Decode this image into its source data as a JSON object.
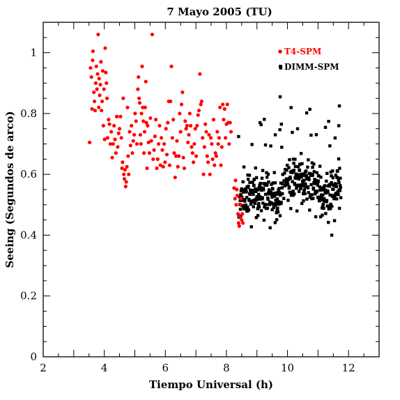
{
  "chart_data": {
    "type": "scatter",
    "title": "7 Mayo 2005 (TU)",
    "xlabel": "Tiempo Universal (h)",
    "ylabel": "Seeing (Segundos de arco)",
    "xlim": [
      2,
      13
    ],
    "ylim": [
      0,
      1.1
    ],
    "x_ticks": [
      2,
      4,
      6,
      8,
      10,
      12
    ],
    "y_ticks": [
      0,
      0.2,
      0.4,
      0.6,
      0.8,
      1
    ],
    "x_minor_step": 0.5,
    "y_minor_step": 0.05,
    "grid": false,
    "legend_position": "top-right",
    "series": [
      {
        "name": "T4-SPM",
        "color": "#ff0000",
        "marker": "circle",
        "points": [
          [
            3.52,
            0.705
          ],
          [
            3.55,
            0.95
          ],
          [
            3.58,
            0.92
          ],
          [
            3.6,
            0.815
          ],
          [
            3.62,
            0.975
          ],
          [
            3.63,
            1.005
          ],
          [
            3.66,
            0.87
          ],
          [
            3.68,
            0.84
          ],
          [
            3.7,
            0.81
          ],
          [
            3.72,
            0.9
          ],
          [
            3.74,
            0.955
          ],
          [
            3.76,
            0.88
          ],
          [
            3.78,
            0.93
          ],
          [
            3.8,
            1.06
          ],
          [
            3.82,
            0.82
          ],
          [
            3.83,
            0.915
          ],
          [
            3.85,
            0.86
          ],
          [
            3.87,
            0.895
          ],
          [
            3.89,
            0.97
          ],
          [
            3.91,
            0.81
          ],
          [
            3.93,
            0.84
          ],
          [
            3.95,
            0.94
          ],
          [
            3.97,
            0.76
          ],
          [
            3.99,
            0.88
          ],
          [
            4.01,
            0.715
          ],
          [
            4.03,
            1.015
          ],
          [
            4.05,
            0.935
          ],
          [
            4.07,
            0.9
          ],
          [
            4.09,
            0.85
          ],
          [
            4.11,
            0.72
          ],
          [
            4.14,
            0.78
          ],
          [
            4.17,
            0.765
          ],
          [
            4.2,
            0.7
          ],
          [
            4.23,
            0.74
          ],
          [
            4.26,
            0.655
          ],
          [
            4.29,
            0.7
          ],
          [
            4.32,
            0.76
          ],
          [
            4.35,
            0.715
          ],
          [
            4.38,
            0.67
          ],
          [
            4.41,
            0.79
          ],
          [
            4.44,
            0.69
          ],
          [
            4.47,
            0.735
          ],
          [
            4.5,
            0.75
          ],
          [
            4.53,
            0.79
          ],
          [
            4.56,
            0.72
          ],
          [
            4.58,
            0.62
          ],
          [
            4.6,
            0.64
          ],
          [
            4.62,
            0.85
          ],
          [
            4.64,
            0.6
          ],
          [
            4.66,
            0.585
          ],
          [
            4.68,
            0.615
          ],
          [
            4.7,
            0.56
          ],
          [
            4.72,
            0.575
          ],
          [
            4.74,
            0.625
          ],
          [
            4.76,
            0.82
          ],
          [
            4.78,
            0.66
          ],
          [
            4.8,
            0.6
          ],
          [
            4.83,
            0.74
          ],
          [
            4.86,
            0.695
          ],
          [
            4.89,
            0.76
          ],
          [
            4.92,
            0.67
          ],
          [
            4.95,
            0.71
          ],
          [
            4.98,
            0.73
          ],
          [
            5.01,
            0.8
          ],
          [
            5.04,
            0.775
          ],
          [
            5.07,
            0.7
          ],
          [
            5.1,
            0.88
          ],
          [
            5.12,
            0.92
          ],
          [
            5.14,
            0.85
          ],
          [
            5.16,
            0.835
          ],
          [
            5.18,
            0.73
          ],
          [
            5.2,
            0.7
          ],
          [
            5.22,
            0.8
          ],
          [
            5.24,
            0.955
          ],
          [
            5.26,
            0.82
          ],
          [
            5.28,
            0.775
          ],
          [
            5.3,
            0.67
          ],
          [
            5.32,
            0.74
          ],
          [
            5.34,
            0.82
          ],
          [
            5.36,
            0.905
          ],
          [
            5.38,
            0.77
          ],
          [
            5.4,
            0.62
          ],
          [
            5.42,
            0.76
          ],
          [
            5.45,
            0.705
          ],
          [
            5.48,
            0.67
          ],
          [
            5.51,
            0.785
          ],
          [
            5.54,
            0.71
          ],
          [
            5.57,
            1.06
          ],
          [
            5.6,
            0.65
          ],
          [
            5.63,
            0.68
          ],
          [
            5.66,
            0.725
          ],
          [
            5.69,
            0.78
          ],
          [
            5.72,
            0.62
          ],
          [
            5.75,
            0.65
          ],
          [
            5.78,
            0.7
          ],
          [
            5.81,
            0.76
          ],
          [
            5.84,
            0.63
          ],
          [
            5.87,
            0.72
          ],
          [
            5.9,
            0.68
          ],
          [
            5.93,
            0.625
          ],
          [
            5.96,
            0.7
          ],
          [
            5.99,
            0.64
          ],
          [
            6.02,
            0.75
          ],
          [
            6.05,
            0.665
          ],
          [
            6.08,
            0.77
          ],
          [
            6.11,
            0.84
          ],
          [
            6.14,
            0.63
          ],
          [
            6.17,
            0.84
          ],
          [
            6.2,
            0.955
          ],
          [
            6.23,
            0.72
          ],
          [
            6.26,
            0.78
          ],
          [
            6.29,
            0.67
          ],
          [
            6.32,
            0.59
          ],
          [
            6.35,
            0.66
          ],
          [
            6.38,
            0.71
          ],
          [
            6.41,
            0.625
          ],
          [
            6.44,
            0.66
          ],
          [
            6.47,
            0.8
          ],
          [
            6.5,
            0.74
          ],
          [
            6.53,
            0.83
          ],
          [
            6.56,
            0.87
          ],
          [
            6.59,
            0.655
          ],
          [
            6.62,
            0.62
          ],
          [
            6.65,
            0.775
          ],
          [
            6.68,
            0.75
          ],
          [
            6.71,
            0.76
          ],
          [
            6.74,
            0.705
          ],
          [
            6.77,
            0.73
          ],
          [
            6.8,
            0.8
          ],
          [
            6.83,
            0.76
          ],
          [
            6.86,
            0.69
          ],
          [
            6.89,
            0.67
          ],
          [
            6.92,
            0.64
          ],
          [
            6.95,
            0.7
          ],
          [
            6.98,
            0.75
          ],
          [
            7.01,
            0.66
          ],
          [
            7.04,
            0.76
          ],
          [
            7.07,
            0.795
          ],
          [
            7.1,
            0.81
          ],
          [
            7.13,
            0.93
          ],
          [
            7.16,
            0.83
          ],
          [
            7.19,
            0.84
          ],
          [
            7.22,
            0.72
          ],
          [
            7.25,
            0.6
          ],
          [
            7.28,
            0.69
          ],
          [
            7.31,
            0.765
          ],
          [
            7.34,
            0.74
          ],
          [
            7.37,
            0.66
          ],
          [
            7.4,
            0.64
          ],
          [
            7.43,
            0.73
          ],
          [
            7.46,
            0.6
          ],
          [
            7.49,
            0.72
          ],
          [
            7.52,
            0.7
          ],
          [
            7.55,
            0.65
          ],
          [
            7.58,
            0.78
          ],
          [
            7.61,
            0.63
          ],
          [
            7.64,
            0.67
          ],
          [
            7.67,
            0.66
          ],
          [
            7.7,
            0.74
          ],
          [
            7.73,
            0.7
          ],
          [
            7.76,
            0.72
          ],
          [
            7.79,
            0.82
          ],
          [
            7.82,
            0.63
          ],
          [
            7.85,
            0.69
          ],
          [
            7.88,
            0.83
          ],
          [
            7.91,
            0.78
          ],
          [
            7.94,
            0.815
          ],
          [
            7.97,
            0.72
          ],
          [
            8.0,
            0.765
          ],
          [
            8.03,
            0.83
          ],
          [
            8.06,
            0.77
          ],
          [
            8.09,
            0.7
          ],
          [
            8.12,
            0.77
          ],
          [
            8.15,
            0.74
          ],
          [
            8.25,
            0.555
          ],
          [
            8.28,
            0.52
          ],
          [
            8.3,
            0.58
          ],
          [
            8.32,
            0.5
          ],
          [
            8.34,
            0.55
          ],
          [
            8.36,
            0.53
          ],
          [
            8.38,
            0.47
          ],
          [
            8.4,
            0.44
          ],
          [
            8.42,
            0.43
          ],
          [
            8.44,
            0.46
          ],
          [
            8.46,
            0.5
          ],
          [
            8.48,
            0.52
          ],
          [
            8.5,
            0.45
          ],
          [
            8.52,
            0.47
          ],
          [
            8.54,
            0.44
          ]
        ]
      },
      {
        "name": "DIMM-SPM",
        "color": "#000000",
        "marker": "square",
        "points": []
      }
    ]
  }
}
